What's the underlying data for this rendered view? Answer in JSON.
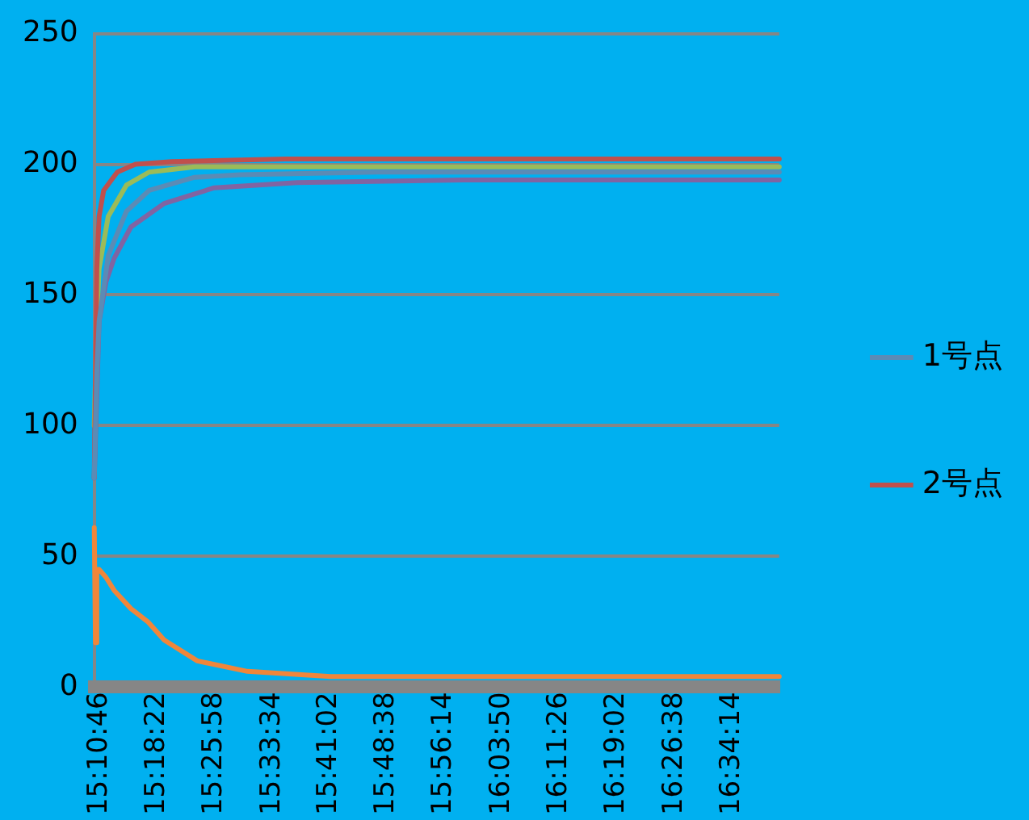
{
  "chart_data": {
    "type": "line",
    "legend": "right",
    "grid": "y",
    "marker": "none",
    "line_style": "solid",
    "xlim": [
      15.1794,
      16.685
    ],
    "ylim": [
      0,
      250
    ],
    "yticks": [
      0,
      50,
      100,
      150,
      200,
      250
    ],
    "xticks": [
      {
        "value": 15.179444,
        "label": "15:10:46"
      },
      {
        "value": 15.306111,
        "label": "15:18:22"
      },
      {
        "value": 15.432778,
        "label": "15:25:58"
      },
      {
        "value": 15.559444,
        "label": "15:33:34"
      },
      {
        "value": 15.683889,
        "label": "15:41:02"
      },
      {
        "value": 15.810556,
        "label": "15:48:38"
      },
      {
        "value": 15.937222,
        "label": "15:56:14"
      },
      {
        "value": 16.063889,
        "label": "16:03:50"
      },
      {
        "value": 16.190556,
        "label": "16:11:26"
      },
      {
        "value": 16.317222,
        "label": "16:19:02"
      },
      {
        "value": 16.443889,
        "label": "16:26:38"
      },
      {
        "value": 16.570556,
        "label": "16:34:14"
      }
    ],
    "series": [
      {
        "name": "1号点",
        "color": "#5b8bb5",
        "x": [
          15.1794,
          15.185,
          15.19,
          15.21,
          15.25,
          15.3,
          15.4,
          15.5,
          15.8,
          16.2,
          16.685
        ],
        "values": [
          80,
          120,
          140,
          165,
          182,
          190,
          195,
          196,
          197,
          197,
          197
        ]
      },
      {
        "name": "2号点",
        "color": "#c0504d",
        "x": [
          15.1794,
          15.185,
          15.19,
          15.2,
          15.23,
          15.27,
          15.35,
          15.6,
          16.0,
          16.4,
          16.685
        ],
        "values": [
          80,
          160,
          180,
          190,
          197,
          200,
          201,
          202,
          202,
          202,
          202
        ]
      },
      {
        "color": "#9bbb59",
        "x": [
          15.1794,
          15.185,
          15.19,
          15.21,
          15.25,
          15.3,
          15.4,
          15.7,
          16.2,
          16.685
        ],
        "values": [
          100,
          140,
          160,
          180,
          192,
          197,
          199,
          199,
          199,
          199
        ]
      },
      {
        "color": "#8064a2",
        "x": [
          15.1794,
          15.19,
          15.205,
          15.223,
          15.26,
          15.333,
          15.443,
          15.625,
          15.99,
          16.685
        ],
        "values": [
          80,
          140,
          155,
          164,
          176,
          185,
          191,
          193,
          194,
          194
        ]
      },
      {
        "color": "#f0863a",
        "x": [
          15.1794,
          15.182,
          15.185,
          15.19,
          15.205,
          15.223,
          15.26,
          15.297,
          15.333,
          15.406,
          15.516,
          15.699,
          16.0,
          16.685
        ],
        "values": [
          61,
          17,
          45,
          45,
          42,
          37,
          30,
          25,
          18,
          10,
          6,
          4,
          4,
          4
        ]
      }
    ]
  }
}
